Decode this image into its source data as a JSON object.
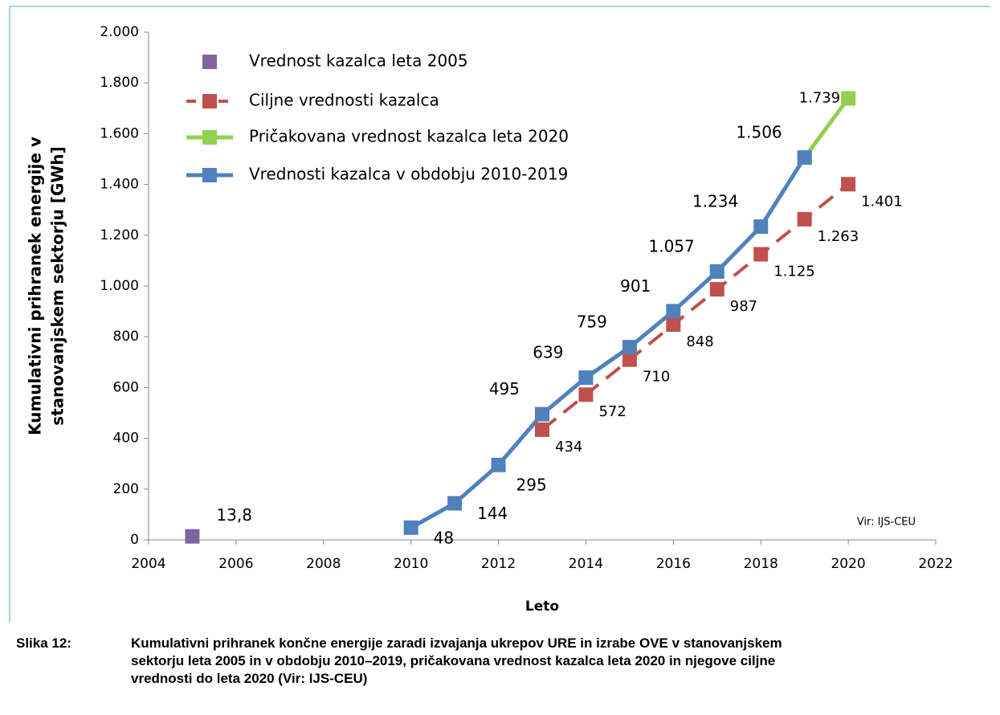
{
  "chart_data": {
    "type": "line",
    "ylabel": [
      "Kumulativni prihranek energije v",
      "stanovanjskem sektorju [GWh]"
    ],
    "xlabel": "Leto",
    "annotation": "Vir: IJS-CEU",
    "xlim": [
      2004,
      2022
    ],
    "xticks": [
      2004,
      2006,
      2008,
      2010,
      2012,
      2014,
      2016,
      2018,
      2020,
      2022
    ],
    "ylim": [
      0,
      2000
    ],
    "yticks": [
      0,
      200,
      400,
      600,
      800,
      {
        "value": 1000,
        "label": "1.000"
      },
      {
        "value": 1200,
        "label": "1.200"
      },
      {
        "value": 1400,
        "label": "1.400"
      },
      {
        "value": 1600,
        "label": "1.600"
      },
      {
        "value": 1800,
        "label": "1.800"
      },
      {
        "value": 2000,
        "label": "2.000"
      }
    ],
    "grid": false,
    "legend": "upper left",
    "series": [
      {
        "name": "Vrednost kazalca leta 2005",
        "color": "#8064a2",
        "line": false,
        "dashed": false,
        "x": [
          2005
        ],
        "values": [
          13.8
        ],
        "value_labels": [
          "13,8"
        ]
      },
      {
        "name": "Ciljne vrednosti kazalca",
        "color": "#c0504d",
        "line": true,
        "dashed": true,
        "x": [
          2013,
          2014,
          2015,
          2016,
          2017,
          2018,
          2019,
          2020
        ],
        "values": [
          434,
          572,
          710,
          848,
          987,
          1125,
          1263,
          1401
        ],
        "value_labels": [
          "434",
          "572",
          "710",
          "848",
          "987",
          "1.125",
          "1.263",
          "1.401"
        ]
      },
      {
        "name": "Pričakovana vrednost kazalca leta 2020",
        "color": "#92d050",
        "line": true,
        "dashed": false,
        "x": [
          2019,
          2020
        ],
        "values": [
          1506,
          1739
        ],
        "value_labels": [
          null,
          "1.739"
        ]
      },
      {
        "name": "Vrednosti kazalca v obdobju 2010-2019",
        "color": "#4f81bd",
        "line": true,
        "dashed": false,
        "x": [
          2010,
          2011,
          2012,
          2013,
          2014,
          2015,
          2016,
          2017,
          2018,
          2019
        ],
        "values": [
          48,
          144,
          295,
          495,
          639,
          759,
          901,
          1057,
          1234,
          1506
        ],
        "value_labels": [
          "48",
          "144",
          "295",
          "495",
          "639",
          "759",
          "901",
          "1.057",
          "1.234",
          "1.506"
        ]
      }
    ]
  },
  "caption": {
    "label": "Slika 12:",
    "text": "Kumulativni prihranek končne energije zaradi izvajanja ukrepov URE in izrabe OVE v stanovanjskem sektorju leta 2005 in v obdobju 2010–2019, pričakovana vrednost kazalca leta 2020 in njegove ciljne vrednosti do leta 2020 (Vir: IJS-CEU)"
  }
}
